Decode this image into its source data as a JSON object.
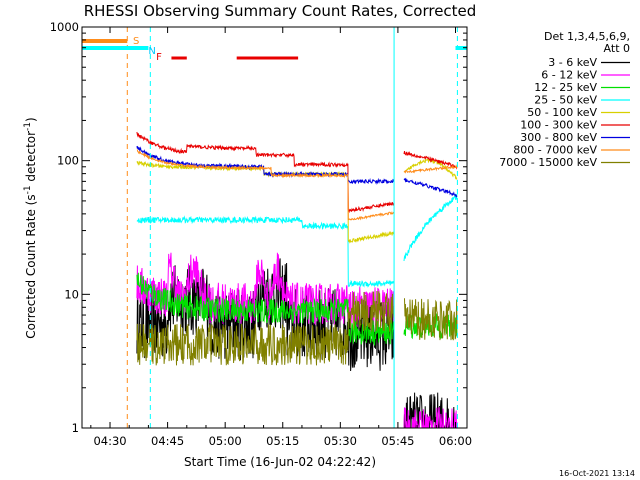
{
  "chart_data": {
    "type": "line",
    "title": "RHESSI Observing Summary Count Rates, Corrected",
    "xlabel": "Start Time (16-Jun-02 04:22:42)",
    "ylabel_main": "Corrected Count Rate (s",
    "ylabel_sup1": "-1",
    "ylabel_mid": " detector",
    "ylabel_sup2": "-1",
    "ylabel_end": ")",
    "yscale": "log",
    "ylim": [
      1,
      1000
    ],
    "xlim_min": [
      22.7,
      123
    ],
    "x_ticks": [
      {
        "t": 30,
        "label": "04:30"
      },
      {
        "t": 45,
        "label": "04:45"
      },
      {
        "t": 60,
        "label": "05:00"
      },
      {
        "t": 75,
        "label": "05:15"
      },
      {
        "t": 90,
        "label": "05:30"
      },
      {
        "t": 105,
        "label": "05:45"
      },
      {
        "t": 120,
        "label": "06:00"
      }
    ],
    "y_ticks": [
      {
        "v": 1,
        "label": "1"
      },
      {
        "v": 10,
        "label": "10"
      },
      {
        "v": 100,
        "label": "100"
      },
      {
        "v": 1000,
        "label": "1000"
      }
    ],
    "legend_header": [
      "Det 1,3,4,5,6,9,",
      "Att 0"
    ],
    "series": [
      {
        "name": "3 - 6 keV",
        "color": "#000000",
        "base": 6.0,
        "noise": 0.35
      },
      {
        "name": "6 - 12 keV",
        "color": "#ff00ff",
        "base": 8.5,
        "noise": 0.2
      },
      {
        "name": "12 - 25 keV",
        "color": "#00e000",
        "base": 7.5,
        "noise": 0.12
      },
      {
        "name": "25 - 50 keV",
        "color": "#00ffff",
        "base": 36,
        "noise": 0.05
      },
      {
        "name": "50 - 100 keV",
        "color": "#d8d000",
        "base": 88,
        "noise": 0.03
      },
      {
        "name": "100 - 300 keV",
        "color": "#e80000",
        "base": 110,
        "noise": 0.03
      },
      {
        "name": "300 - 800 keV",
        "color": "#0000e0",
        "base": 90,
        "noise": 0.03
      },
      {
        "name": "800 - 7000 keV",
        "color": "#ff8c1a",
        "base": 88,
        "noise": 0.02
      },
      {
        "name": "7000 - 15000 keV",
        "color": "#808000",
        "base": 4.2,
        "noise": 0.2
      }
    ],
    "annotations": [
      {
        "label": "S",
        "color": "#ff8c1a",
        "t": 36
      },
      {
        "label": "N",
        "color": "#00c8ff",
        "t": 40
      },
      {
        "label": "F",
        "color": "#e80000",
        "t": 42
      }
    ],
    "flag_bars": {
      "saa": {
        "color": "#ff8c1a",
        "t_start": 22.7,
        "t_end": 34.5
      },
      "night": {
        "color": "#00ffff",
        "segments": [
          [
            22.7,
            40
          ],
          [
            120,
            123
          ]
        ]
      },
      "flare": {
        "color": "#e80000",
        "segments": [
          [
            46,
            50
          ],
          [
            63,
            79
          ]
        ]
      }
    },
    "vlines": [
      {
        "t": 34.5,
        "color": "#ff8c1a"
      },
      {
        "t": 40.5,
        "color": "#00ffff"
      },
      {
        "t": 120.5,
        "color": "#00ffff"
      }
    ],
    "gap_intervals": [
      [
        22.7,
        37
      ],
      [
        104,
        106.5
      ],
      [
        120.5,
        123
      ]
    ],
    "timestamp": "16-Oct-2021 13:14"
  }
}
